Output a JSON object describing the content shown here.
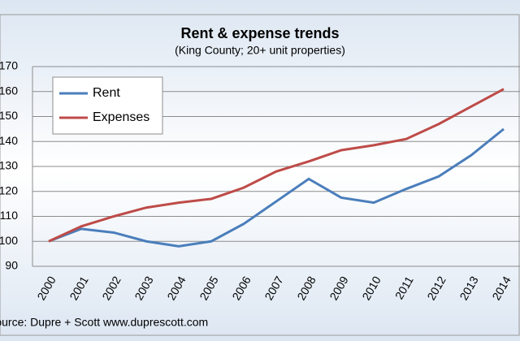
{
  "chart_data": {
    "type": "line",
    "title": "Rent & expense trends",
    "subtitle": "(King County; 20+ unit properties)",
    "source": "Source: Dupre + Scott    www.duprescott.com",
    "categories": [
      "2000",
      "2001",
      "2002",
      "2003",
      "2004",
      "2005",
      "2006",
      "2007",
      "2008",
      "2009",
      "2010",
      "2011",
      "2012",
      "2013",
      "2014"
    ],
    "series": [
      {
        "name": "Rent",
        "color": "#4a7ebb",
        "values": [
          100,
          105,
          103.5,
          100,
          98,
          100,
          107,
          116,
          125,
          117.5,
          115.5,
          121,
          126,
          134.5,
          145
        ]
      },
      {
        "name": "Expenses",
        "color": "#be4b48",
        "values": [
          100,
          106,
          110,
          113.5,
          115.5,
          117,
          121.5,
          128,
          132,
          136.5,
          138.5,
          141,
          147,
          154,
          161
        ]
      }
    ],
    "ylim": [
      90,
      170
    ],
    "yticks": [
      90,
      100,
      110,
      120,
      130,
      140,
      150,
      160,
      170
    ],
    "grid": true,
    "legend": "top-left"
  }
}
